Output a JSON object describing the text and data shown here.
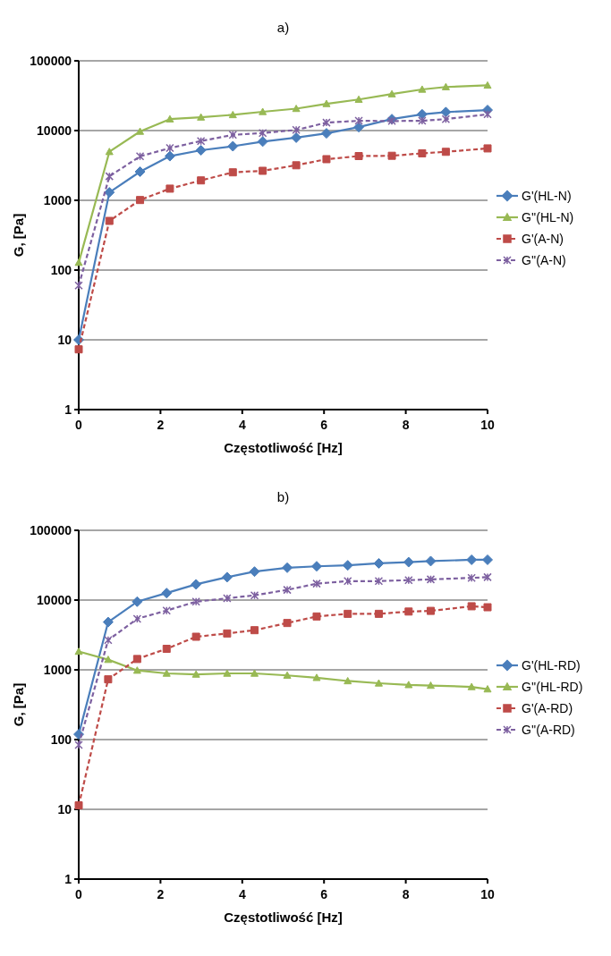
{
  "chart_data": [
    {
      "type": "line",
      "title": "a)",
      "xlabel": "Częstotliwość [Hz]",
      "ylabel": "G, [Pa]",
      "log": "y",
      "grid": "y",
      "legend": "right",
      "xlim": [
        0,
        10
      ],
      "xticks": [
        0,
        2,
        4,
        6,
        8,
        10
      ],
      "ylim": [
        1,
        100000
      ],
      "yticks": [
        1,
        10,
        100,
        1000,
        10000,
        100000
      ],
      "x": [
        0,
        0.75,
        1.5,
        2.23,
        2.99,
        3.77,
        4.5,
        5.32,
        6.06,
        6.85,
        7.66,
        8.4,
        8.98,
        10
      ],
      "series": [
        {
          "name": "G'(HL-N)",
          "color": "#4a7ebb",
          "marker": "diamond",
          "line_style": "solid",
          "values": [
            10,
            1300,
            2570,
            4300,
            5220,
            5960,
            6940,
            7920,
            9120,
            11200,
            14600,
            17100,
            18400,
            19700
          ]
        },
        {
          "name": "G''(HL-N)",
          "color": "#98b954",
          "marker": "triangle",
          "line_style": "solid",
          "values": [
            128,
            4970,
            9700,
            14600,
            15500,
            16800,
            18600,
            20600,
            24200,
            27900,
            33400,
            38900,
            42200,
            44500
          ]
        },
        {
          "name": "G'(A-N)",
          "color": "#be4b48",
          "marker": "square",
          "line_style": "dashed",
          "values": [
            7.3,
            507,
            1010,
            1470,
            1930,
            2520,
            2650,
            3180,
            3890,
            4310,
            4350,
            4720,
            4960,
            5550
          ]
        },
        {
          "name": "G''(A-N)",
          "color": "#7d60a0",
          "marker": "cross",
          "line_style": "dashed",
          "values": [
            60,
            2210,
            4270,
            5610,
            7080,
            8670,
            9220,
            10200,
            13000,
            13800,
            13700,
            13800,
            14600,
            17100
          ]
        }
      ]
    },
    {
      "type": "line",
      "title": "b)",
      "xlabel": "Częstotliwość [Hz]",
      "ylabel": "G, [Pa]",
      "log": "y",
      "grid": "y",
      "legend": "right",
      "xlim": [
        0,
        10
      ],
      "xticks": [
        0,
        2,
        4,
        6,
        8,
        10
      ],
      "ylim": [
        1,
        100000
      ],
      "yticks": [
        1,
        10,
        100,
        1000,
        10000,
        100000
      ],
      "x": [
        0,
        0.72,
        1.43,
        2.15,
        2.87,
        3.63,
        4.3,
        5.1,
        5.82,
        6.58,
        7.34,
        8.07,
        8.61,
        9.61,
        10
      ],
      "series": [
        {
          "name": "G'(HL-RD)",
          "color": "#4a7ebb",
          "marker": "diamond",
          "line_style": "solid",
          "values": [
            119,
            4840,
            9480,
            12600,
            16800,
            21300,
            25600,
            29100,
            30500,
            31500,
            33600,
            35000,
            36200,
            37800,
            37800
          ]
        },
        {
          "name": "G''(HL-RD)",
          "color": "#98b954",
          "marker": "triangle",
          "line_style": "solid",
          "values": [
            1830,
            1400,
            980,
            888,
            860,
            888,
            888,
            832,
            771,
            692,
            642,
            609,
            596,
            570,
            529
          ]
        },
        {
          "name": "G'(A-RD)",
          "color": "#be4b48",
          "marker": "square",
          "line_style": "dashed",
          "values": [
            11.4,
            731,
            1430,
            2000,
            2980,
            3320,
            3700,
            4690,
            5820,
            6350,
            6350,
            6850,
            7000,
            8150,
            7890
          ]
        },
        {
          "name": "G''(A-RD)",
          "color": "#7d60a0",
          "marker": "cross",
          "line_style": "dashed",
          "values": [
            84,
            2670,
            5390,
            7080,
            9480,
            10600,
            11700,
            14000,
            17200,
            18700,
            18700,
            19300,
            19800,
            20800,
            21300
          ]
        }
      ]
    }
  ]
}
